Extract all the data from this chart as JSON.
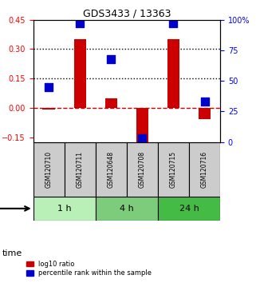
{
  "title": "GDS3433 / 13363",
  "samples": [
    "GSM120710",
    "GSM120711",
    "GSM120648",
    "GSM120708",
    "GSM120715",
    "GSM120716"
  ],
  "log10_ratio": [
    -0.01,
    0.35,
    0.05,
    -0.175,
    0.35,
    -0.06
  ],
  "percentile_rank": [
    45,
    97,
    68,
    3,
    97,
    33
  ],
  "bar_color": "#cc0000",
  "dot_color": "#0000cc",
  "ylim_left": [
    -0.175,
    0.45
  ],
  "ylim_right": [
    0,
    100
  ],
  "yticks_left": [
    -0.15,
    0.0,
    0.15,
    0.3,
    0.45
  ],
  "yticks_right": [
    0,
    25,
    50,
    75,
    100
  ],
  "hlines_dotted": [
    0.15,
    0.3
  ],
  "hline_dashed": 0.0,
  "time_groups": [
    {
      "label": "1 h",
      "cols": [
        0,
        1
      ],
      "color": "#b8f0b8"
    },
    {
      "label": "4 h",
      "cols": [
        2,
        3
      ],
      "color": "#7ccc7c"
    },
    {
      "label": "24 h",
      "cols": [
        4,
        5
      ],
      "color": "#44bb44"
    }
  ],
  "legend_bar_label": "log10 ratio",
  "legend_dot_label": "percentile rank within the sample",
  "time_label": "time",
  "bar_width": 0.4,
  "dot_size": 60
}
